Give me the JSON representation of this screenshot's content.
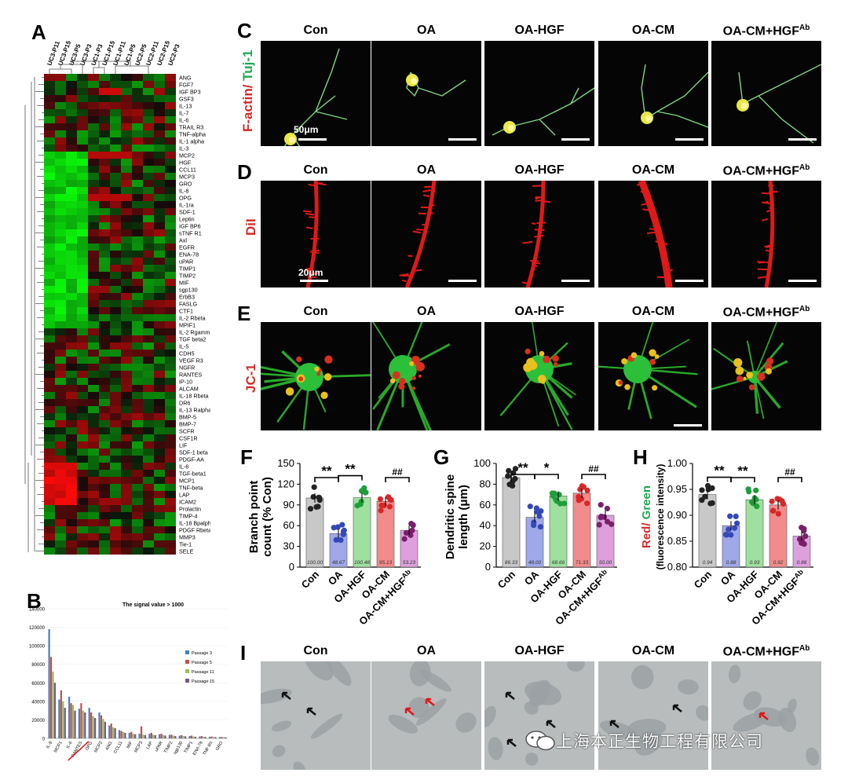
{
  "panels": {
    "A": "A",
    "B": "B",
    "C": "C",
    "D": "D",
    "E": "E",
    "F": "F",
    "G": "G",
    "H": "H",
    "I": "I"
  },
  "groups": [
    "Con",
    "OA",
    "OA-HGF",
    "OA-CM",
    "OA-CM+HGF"
  ],
  "group_sup": "Ab",
  "heatmap": {
    "columns": [
      "UC3-P11",
      "UC3-P15",
      "UC3-P5",
      "UC3-P3",
      "UC1-P3",
      "UC1-P15",
      "UC1-P11",
      "UC1-P5",
      "UC2-P5",
      "UC2-P11",
      "UC2-P15",
      "UC2-P3"
    ],
    "rows": [
      "ANG",
      "FGF7",
      "IGF BP3",
      "GSF3",
      "IL-13",
      "IL-7",
      "IL-6",
      "TRAIL R3",
      "TNF-alpha",
      "IL-1 alpha",
      "IL-3",
      "MCP2",
      "HGF",
      "CCL11",
      "MCP3",
      "GRO",
      "IL-8",
      "OPG",
      "IL-1ra",
      "SDF-1",
      "Leptin",
      "IGF BP6",
      "sTNF R1",
      "Axl",
      "EGFR",
      "ENA-78",
      "uPAR",
      "TIMP1",
      "TIMP2",
      "MIF",
      "sgp130",
      "ErbB3",
      "FASLG",
      "CTF1",
      "IL-2 Rbeta",
      "MPIF1",
      "IL-2 Rgamma",
      "TGF beta2",
      "IL-5",
      "CDH5",
      "VEGF R3",
      "NGFR",
      "RANTES",
      "IP-10",
      "ALCAM",
      "IL-18 Rbeta",
      "DR6",
      "IL-13 Ralpha2",
      "BMP-5",
      "BMP-7",
      "SCFR",
      "CSF1R",
      "LIF",
      "SDF-1 beta",
      "PDGF-AA",
      "IL-6",
      "TGF-beta1",
      "MCP1",
      "TNF-beta",
      "LAP",
      "ICAM2",
      "Prolactin",
      "TIMP-4",
      "IL-18 Bpalpha",
      "PDGF Rbeta",
      "MMP3",
      "Tie-1",
      "SELE"
    ]
  },
  "row_labels": {
    "C": "F-actin/ Tuj-1",
    "D": "DiI",
    "E": "JC-1"
  },
  "row_label_parts": {
    "c1": "F-actin/ ",
    "c2": "Tuj-1"
  },
  "scale_bars": {
    "C": "50μm",
    "D": "20μm"
  },
  "bar_b": {
    "title": "The signal value > 1000",
    "ylim": [
      0,
      140000
    ],
    "yticks": [
      "140000",
      "120000",
      "100000",
      "80000",
      "60000",
      "40000",
      "20000",
      "0"
    ],
    "legend": [
      "Passage 3",
      "Passage 5",
      "Passage 11",
      "Passage 15"
    ],
    "series_colors": [
      "#4a7ebb",
      "#c0504d",
      "#9bbb59",
      "#6e5a8a"
    ],
    "categories": [
      "IL-8",
      "MCP1",
      "IL-6",
      "RANTES",
      "OPG",
      "MCP2",
      "ANG",
      "CCL11",
      "MIF",
      "MCP3",
      "LAP",
      "uPAR",
      "TIMP2",
      "sgp130",
      "TIMP1",
      "ENA-78",
      "TNF RII",
      "GRO"
    ],
    "underlined": "RANTES"
  },
  "chart_data": [
    {
      "type": "bar",
      "panel": "B",
      "title": "The signal value > 1000",
      "categories": [
        "IL-8",
        "MCP1",
        "IL-6",
        "RANTES",
        "OPG",
        "MCP2",
        "ANG",
        "CCL11",
        "MIF",
        "MCP3",
        "LAP",
        "uPAR",
        "TIMP2",
        "sgp130",
        "TIMP1",
        "ENA-78",
        "TNF RII",
        "GRO"
      ],
      "series": [
        {
          "name": "Passage 3",
          "values": [
            118000,
            42000,
            45000,
            32000,
            33000,
            28000,
            14000,
            9000,
            6000,
            5000,
            5000,
            4500,
            3800,
            3000,
            2500,
            2000,
            1600,
            1400
          ]
        },
        {
          "name": "Passage 5",
          "values": [
            88000,
            52000,
            38000,
            38000,
            28000,
            25000,
            16000,
            8000,
            7000,
            13000,
            6000,
            5000,
            4000,
            3500,
            3000,
            2500,
            2000,
            1500
          ]
        },
        {
          "name": "Passage 11",
          "values": [
            72000,
            40000,
            36000,
            30000,
            24000,
            21000,
            12000,
            7000,
            5000,
            4000,
            4000,
            3500,
            3000,
            2500,
            2000,
            1800,
            1400,
            1200
          ]
        },
        {
          "name": "Passage 15",
          "values": [
            60000,
            33000,
            30000,
            28000,
            22000,
            18000,
            11000,
            6000,
            4500,
            3500,
            3500,
            3000,
            2500,
            2200,
            1800,
            1500,
            1300,
            1100
          ]
        }
      ],
      "ylim": [
        0,
        140000
      ]
    },
    {
      "type": "bar",
      "panel": "F",
      "ylabel": "Branch point count (% Con)",
      "categories": [
        "Con",
        "OA",
        "OA-HGF",
        "OA-CM",
        "OA-CM+HGFAb"
      ],
      "values": [
        100.0,
        48.67,
        100.48,
        95.13,
        53.23
      ],
      "value_labels": [
        "100.00",
        "48.67",
        "100.48",
        "95.13",
        "53.23"
      ],
      "ylim": [
        0,
        150
      ],
      "yticks": [
        "0",
        "30",
        "60",
        "90",
        "120",
        "150"
      ],
      "significance": [
        "**",
        "**",
        "##"
      ]
    },
    {
      "type": "bar",
      "panel": "G",
      "ylabel": "Dendritic spine length (μm)",
      "categories": [
        "Con",
        "OA",
        "OA-HGF",
        "OA-CM",
        "OA-CM+HGFAb"
      ],
      "values": [
        86.33,
        48.0,
        68.66,
        71.33,
        50.0
      ],
      "value_labels": [
        "86.33",
        "48.00",
        "68.66",
        "71.33",
        "50.00"
      ],
      "ylim": [
        0,
        100
      ],
      "yticks": [
        "0",
        "20",
        "40",
        "60",
        "80",
        "100"
      ],
      "significance": [
        "**",
        "*",
        "##"
      ]
    },
    {
      "type": "bar",
      "panel": "H",
      "ylabel": "Red/ Green (fluorescence intensity)",
      "categories": [
        "Con",
        "OA",
        "OA-HGF",
        "OA-CM",
        "OA-CM+HGFAb"
      ],
      "values": [
        0.94,
        0.88,
        0.93,
        0.92,
        0.86
      ],
      "value_labels": [
        "0.94",
        "0.88",
        "0.93",
        "0.92",
        "0.86"
      ],
      "ylim": [
        0.8,
        1.0
      ],
      "yticks": [
        "0.80",
        "0.85",
        "0.90",
        "0.95",
        "1.00"
      ],
      "significance": [
        "**",
        "**",
        "##"
      ]
    }
  ],
  "ylabels": {
    "F1": "Branch point",
    "F2": "count (% Con)",
    "G1": "Dendritic spine",
    "G2": "length (μm)",
    "H1a": "Red/ ",
    "H1b": "Green",
    "H2": "(fluorescence intensity)"
  },
  "watermark": "上海本正生物工程有限公司",
  "colors": {
    "con": "#c8c8c8",
    "oa": "#9fa8e8",
    "hgf": "#9fe09f",
    "cm": "#f28b8b",
    "ab": "#dda0dd",
    "green_label": "#1fa84f",
    "red_label": "#d62828"
  }
}
